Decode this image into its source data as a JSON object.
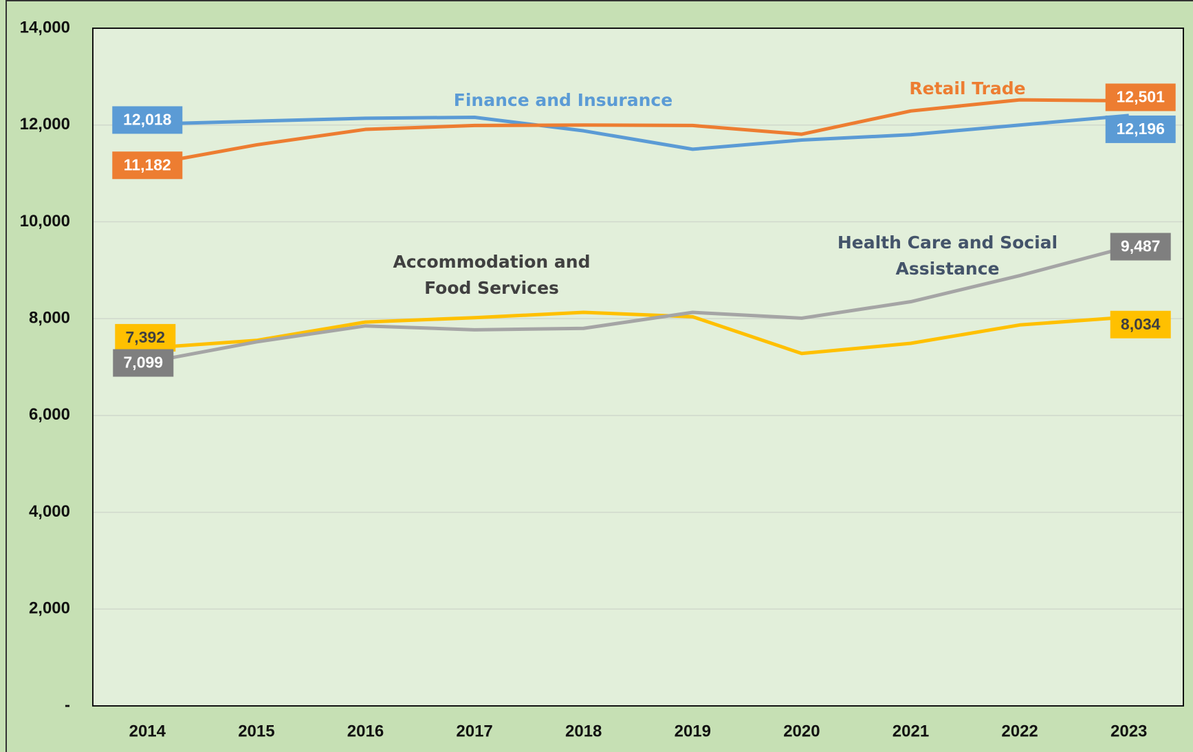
{
  "chart_data": {
    "type": "line",
    "categories": [
      "2014",
      "2015",
      "2016",
      "2017",
      "2018",
      "2019",
      "2020",
      "2021",
      "2022",
      "2023"
    ],
    "series": [
      {
        "name": "Finance and Insurance",
        "color": "#5b9bd5",
        "label_color": "#5b9bd5",
        "values": [
          12018,
          12080,
          12140,
          12160,
          11880,
          11500,
          11690,
          11800,
          12000,
          12196
        ],
        "value_labels": [
          "12,018",
          null,
          null,
          null,
          null,
          null,
          null,
          null,
          null,
          "12,196"
        ]
      },
      {
        "name": "Retail Trade",
        "color": "#ed7d31",
        "label_color": "#ed7d31",
        "values": [
          11182,
          11590,
          11910,
          11990,
          12000,
          11990,
          11810,
          12290,
          12520,
          12501
        ],
        "value_labels": [
          "11,182",
          null,
          null,
          null,
          null,
          null,
          null,
          null,
          null,
          "12,501"
        ]
      },
      {
        "name": "Accommodation and Food Services",
        "color": "#ffc000",
        "label_color": "#ffc000",
        "values": [
          7392,
          7550,
          7930,
          8020,
          8130,
          8040,
          7280,
          7490,
          7870,
          8034
        ],
        "value_labels": [
          "7,392",
          null,
          null,
          null,
          null,
          null,
          null,
          null,
          null,
          "8,034"
        ]
      },
      {
        "name": "Health Care and Social Assistance",
        "color": "#a5a5a5",
        "label_color": "#7f7f7f",
        "values": [
          7099,
          7520,
          7850,
          7770,
          7800,
          8130,
          8010,
          8350,
          8890,
          9487
        ],
        "value_labels": [
          "7,099",
          null,
          null,
          null,
          null,
          null,
          null,
          null,
          null,
          "9,487"
        ]
      }
    ],
    "ylim": [
      0,
      14000
    ],
    "yticks": [
      {
        "value": 0,
        "label": "-"
      },
      {
        "value": 2000,
        "label": "2,000"
      },
      {
        "value": 4000,
        "label": "4,000"
      },
      {
        "value": 6000,
        "label": "6,000"
      },
      {
        "value": 8000,
        "label": "8,000"
      },
      {
        "value": 10000,
        "label": "10,000"
      },
      {
        "value": 12000,
        "label": "12,000"
      },
      {
        "value": 14000,
        "label": "14,000"
      }
    ],
    "grid": true
  }
}
